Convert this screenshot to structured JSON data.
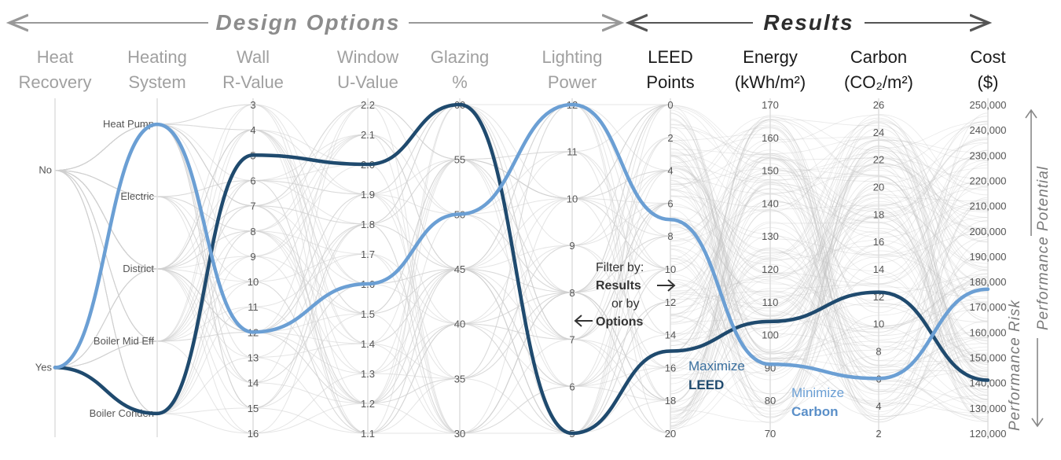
{
  "banners": {
    "design_options": "Design Options",
    "results": "Results"
  },
  "side_label": {
    "risk": "Performance Risk",
    "potential": "Performance Potential"
  },
  "annotations": {
    "filter_line1": "Filter by:",
    "filter_line2": "Results",
    "filter_line3": "or by",
    "filter_line4": "Options",
    "maximize_line1": "Maximize",
    "maximize_line2": "LEED",
    "minimize_line1": "Minimize",
    "minimize_line2": "Carbon"
  },
  "colors": {
    "dark_series": "#1f4a6e",
    "light_series": "#6b9fd4",
    "background_lines": "#cccccc"
  },
  "chart_data": {
    "type": "parallel-coordinates",
    "axes": [
      {
        "key": "heat_recovery",
        "label": [
          "Heat",
          "Recovery"
        ],
        "group": "options",
        "kind": "categorical",
        "ticks": [
          "No",
          "Yes"
        ],
        "tick_positions": [
          0.2,
          0.8
        ]
      },
      {
        "key": "heating_system",
        "label": [
          "Heating",
          "System"
        ],
        "group": "options",
        "kind": "categorical",
        "ticks": [
          "Heat Pump",
          "Electric",
          "District",
          "Boiler Mid Eff",
          "Boiler Conden"
        ],
        "tick_positions": [
          0.06,
          0.28,
          0.5,
          0.72,
          0.94
        ]
      },
      {
        "key": "wall_r",
        "label": [
          "Wall",
          "R-Value"
        ],
        "group": "options",
        "kind": "numeric",
        "min": 3,
        "max": 16,
        "step": 1,
        "reverse": false
      },
      {
        "key": "window_u",
        "label": [
          "Window",
          "U-Value"
        ],
        "group": "options",
        "kind": "numeric",
        "min": 1.1,
        "max": 2.2,
        "step": 0.1,
        "reverse": true
      },
      {
        "key": "glazing",
        "label": [
          "Glazing",
          "%"
        ],
        "group": "options",
        "kind": "numeric",
        "min": 30,
        "max": 60,
        "step": 5,
        "reverse": true
      },
      {
        "key": "lighting",
        "label": [
          "Lighting",
          "Power"
        ],
        "group": "options",
        "kind": "numeric",
        "min": 5,
        "max": 12,
        "step": 1,
        "reverse": true
      },
      {
        "key": "leed",
        "label": [
          "LEED",
          "Points"
        ],
        "group": "results",
        "kind": "numeric",
        "min": 0,
        "max": 20,
        "step": 2,
        "reverse": false
      },
      {
        "key": "energy",
        "label": [
          "Energy",
          "(kWh/m²)"
        ],
        "group": "results",
        "kind": "numeric",
        "min": 70,
        "max": 170,
        "step": 10,
        "reverse": true
      },
      {
        "key": "carbon",
        "label": [
          "Carbon",
          "(CO₂/m²)"
        ],
        "group": "results",
        "kind": "numeric",
        "min": 2,
        "max": 26,
        "step": 2,
        "reverse": true
      },
      {
        "key": "cost",
        "label": [
          "Cost",
          "($)"
        ],
        "group": "results",
        "kind": "numeric",
        "min": 120000,
        "max": 250000,
        "step": 10000,
        "reverse": true,
        "format": "thousands"
      }
    ],
    "series": [
      {
        "name": "Maximize LEED",
        "color": "#1f4a6e",
        "values": {
          "heat_recovery": "Yes",
          "heating_system": "Boiler Conden",
          "wall_r": 5,
          "window_u": 2.0,
          "glazing": 60,
          "lighting": 5,
          "leed": 15,
          "energy": 104,
          "carbon": 12.3,
          "cost": 141000
        }
      },
      {
        "name": "Minimize Carbon",
        "color": "#6b9fd4",
        "values": {
          "heat_recovery": "Yes",
          "heating_system": "Heat Pump",
          "wall_r": 12,
          "window_u": 1.6,
          "glazing": 50,
          "lighting": 12,
          "leed": 7,
          "energy": 91,
          "carbon": 6,
          "cost": 177000
        }
      }
    ]
  }
}
